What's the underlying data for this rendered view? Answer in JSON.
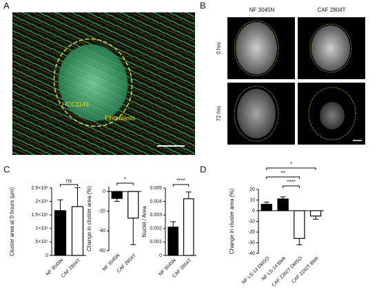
{
  "panels": {
    "A": {
      "letter": "A",
      "labels": [
        "HCC1143",
        "Fibroblasts"
      ]
    },
    "B": {
      "letter": "B",
      "columns": [
        "NF 3045N",
        "CAF 2804T"
      ],
      "rows": [
        "0 hrs",
        "72 hrs"
      ]
    },
    "C": {
      "letter": "C"
    },
    "D": {
      "letter": "D"
    }
  },
  "chart_data": [
    {
      "type": "bar",
      "y_label": "Cluster area at 0 hours (µm)",
      "categories": [
        "NF 3045N",
        "CAF 2804T"
      ],
      "values": [
        1660000,
        1810000
      ],
      "errors": [
        400000,
        700000
      ],
      "colors": [
        "#000000",
        "#ffffff"
      ],
      "ylim": [
        0,
        2500000
      ],
      "yticks": [
        0,
        {
          "value": 500000,
          "label": "5×10⁵"
        },
        {
          "value": 1000000,
          "label": "1×10⁶"
        },
        {
          "value": 1500000,
          "label": "1.5×10⁶"
        },
        {
          "value": 2000000,
          "label": "2×10⁶"
        },
        {
          "value": 2500000,
          "label": "2.5×10⁶"
        }
      ],
      "annotations": [
        "ns"
      ]
    },
    {
      "type": "bar",
      "y_label": "Change in cluster area (%)",
      "categories": [
        "NF 3045N",
        "CAF 2804T"
      ],
      "values": [
        -7,
        -27
      ],
      "errors": [
        3,
        27
      ],
      "colors": [
        "#000000",
        "#ffffff"
      ],
      "ylim": [
        -60,
        5
      ],
      "yticks": [
        0,
        -20,
        -40,
        -60
      ],
      "annotations": [
        "*"
      ]
    },
    {
      "type": "bar",
      "y_label": "Nuclei / Area",
      "categories": [
        "NF 3045N",
        "CAF 2804T"
      ],
      "values": [
        0.0021,
        0.0042
      ],
      "errors": [
        0.0004,
        0.0005
      ],
      "colors": [
        "#000000",
        "#ffffff"
      ],
      "ylim": [
        0,
        0.005
      ],
      "yticks": [
        0,
        0.001,
        0.002,
        0.003,
        0.004,
        0.005
      ],
      "annotations": [
        "****"
      ]
    },
    {
      "type": "bar",
      "y_label": "Change in cluster area (%)",
      "categories": [
        "NF LS-14 DMSO",
        "NF LS-14 Bleb",
        "CAF 2282T DMSO",
        "CAF 2282T Bleb"
      ],
      "values": [
        6,
        11,
        -26,
        -5
      ],
      "errors": [
        2,
        2,
        6,
        3
      ],
      "colors": [
        "#000000",
        "#000000",
        "#ffffff",
        "#ffffff"
      ],
      "ylim": [
        -40,
        20
      ],
      "yticks": [
        20,
        10,
        0,
        -10,
        -20,
        -30,
        -40
      ],
      "annotations": [
        "*",
        "**",
        "****"
      ]
    }
  ]
}
